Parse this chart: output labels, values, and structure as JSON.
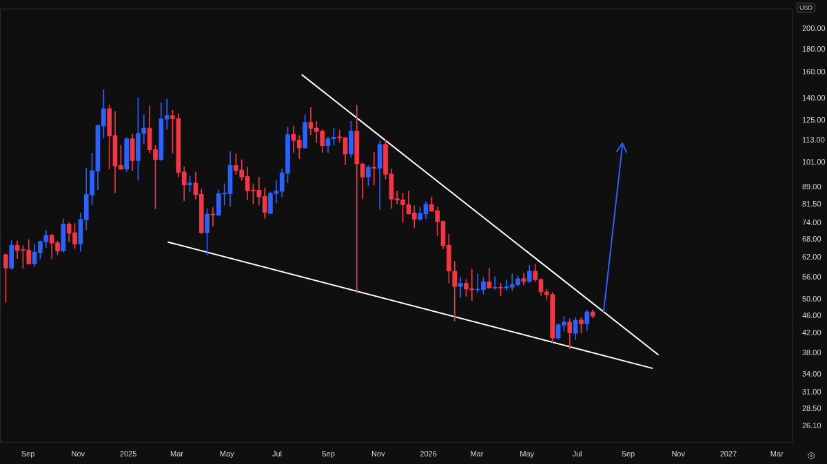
{
  "chart_data": {
    "type": "candlestick",
    "ylabel": "USD",
    "x": [
      "2024-08-05",
      "2024-08-12",
      "2024-08-19",
      "2024-08-26",
      "2024-09-02",
      "2024-09-09",
      "2024-09-16",
      "2024-09-23",
      "2024-09-30",
      "2024-10-07",
      "2024-10-14",
      "2024-10-21",
      "2024-10-28",
      "2024-11-04",
      "2024-11-11",
      "2024-11-18",
      "2024-11-25",
      "2024-12-02",
      "2024-12-09",
      "2024-12-16",
      "2024-12-23",
      "2024-12-30",
      "2025-01-06",
      "2025-01-13",
      "2025-01-20",
      "2025-01-27",
      "2025-02-03",
      "2025-02-10",
      "2025-02-17",
      "2025-02-24",
      "2025-03-03",
      "2025-03-10",
      "2025-03-17",
      "2025-03-24",
      "2025-03-31",
      "2025-04-07",
      "2025-04-14",
      "2025-04-21",
      "2025-04-28",
      "2025-05-05",
      "2025-05-12",
      "2025-05-19",
      "2025-05-26",
      "2025-06-02",
      "2025-06-09",
      "2025-06-16",
      "2025-06-23",
      "2025-06-30",
      "2025-07-07",
      "2025-07-14",
      "2025-07-21",
      "2025-07-28",
      "2025-08-04",
      "2025-08-11",
      "2025-08-18",
      "2025-08-25",
      "2025-09-01",
      "2025-09-08",
      "2025-09-15",
      "2025-09-22",
      "2025-09-29",
      "2025-10-06",
      "2025-10-13",
      "2025-10-20",
      "2025-10-27",
      "2025-11-03",
      "2025-11-10",
      "2025-11-17",
      "2025-11-24",
      "2025-12-01",
      "2025-12-08",
      "2025-12-15",
      "2025-12-22",
      "2025-12-29",
      "2026-01-05",
      "2026-01-12",
      "2026-01-19",
      "2026-01-26",
      "2026-02-02",
      "2026-02-09",
      "2026-02-16",
      "2026-02-23",
      "2026-03-02",
      "2026-03-09",
      "2026-03-16",
      "2026-03-23",
      "2026-03-30",
      "2026-04-06",
      "2026-04-13",
      "2026-04-20",
      "2026-04-27",
      "2026-05-04",
      "2026-05-11",
      "2026-05-18",
      "2026-05-25",
      "2026-06-01",
      "2026-06-08",
      "2026-06-15",
      "2026-06-22",
      "2026-06-29",
      "2026-07-06",
      "2026-07-13",
      "2026-07-20"
    ],
    "ohlc": [
      [
        62.9,
        63.2,
        49.3,
        58.7
      ],
      [
        58.7,
        67.6,
        58.3,
        66.0
      ],
      [
        66.0,
        67.5,
        61.6,
        64.3
      ],
      [
        64.5,
        65.9,
        58.6,
        64.3
      ],
      [
        64.4,
        68.0,
        59.8,
        60.0
      ],
      [
        60.0,
        66.3,
        59.1,
        63.7
      ],
      [
        63.5,
        67.5,
        61.5,
        67.3
      ],
      [
        67.1,
        71.2,
        65.2,
        69.5
      ],
      [
        69.5,
        69.9,
        61.5,
        66.7
      ],
      [
        66.8,
        67.5,
        62.8,
        64.1
      ],
      [
        64.1,
        75.6,
        63.7,
        73.6
      ],
      [
        73.6,
        74.1,
        67.3,
        70.2
      ],
      [
        70.4,
        73.8,
        64.9,
        66.4
      ],
      [
        66.4,
        77.9,
        64.0,
        75.4
      ],
      [
        75.2,
        97.9,
        71.4,
        85.6
      ],
      [
        85.4,
        105.9,
        81.2,
        96.8
      ],
      [
        96.6,
        122.3,
        87.7,
        121.9
      ],
      [
        121.6,
        146.5,
        114.3,
        133.0
      ],
      [
        133.0,
        135.4,
        97.6,
        115.6
      ],
      [
        115.9,
        131.1,
        86.3,
        99.1
      ],
      [
        99.4,
        110.2,
        97.4,
        97.4
      ],
      [
        97.6,
        114.6,
        96.3,
        113.9
      ],
      [
        113.9,
        116.7,
        96.8,
        101.8
      ],
      [
        101.8,
        140.7,
        92.1,
        117.2
      ],
      [
        117.0,
        128.9,
        110.8,
        120.3
      ],
      [
        120.3,
        134.8,
        105.9,
        107.6
      ],
      [
        107.9,
        110.2,
        79.5,
        102.4
      ],
      [
        102.4,
        137.1,
        101.9,
        126.2
      ],
      [
        126.0,
        139.6,
        119.6,
        128.4
      ],
      [
        128.4,
        131.8,
        105.9,
        126.3
      ],
      [
        126.4,
        129.9,
        93.7,
        95.9
      ],
      [
        96.1,
        98.7,
        82.9,
        89.9
      ],
      [
        89.9,
        94.0,
        86.7,
        90.8
      ],
      [
        90.8,
        95.9,
        83.6,
        85.6
      ],
      [
        85.7,
        88.0,
        70.0,
        70.4
      ],
      [
        70.4,
        79.5,
        62.7,
        77.4
      ],
      [
        77.4,
        80.1,
        72.8,
        77.1
      ],
      [
        77.0,
        87.8,
        76.8,
        86.0
      ],
      [
        85.8,
        90.5,
        81.1,
        86.2
      ],
      [
        86.0,
        106.7,
        80.6,
        99.4
      ],
      [
        99.4,
        105.4,
        95.0,
        96.8
      ],
      [
        97.0,
        102.4,
        92.0,
        93.7
      ],
      [
        93.9,
        98.5,
        83.3,
        87.3
      ],
      [
        87.5,
        90.5,
        81.5,
        87.3
      ],
      [
        87.5,
        93.6,
        81.1,
        84.6
      ],
      [
        84.8,
        88.5,
        75.8,
        78.0
      ],
      [
        77.7,
        86.7,
        77.5,
        86.2
      ],
      [
        86.0,
        91.9,
        81.9,
        87.1
      ],
      [
        87.0,
        97.7,
        84.6,
        95.7
      ],
      [
        95.5,
        121.0,
        90.9,
        116.4
      ],
      [
        116.7,
        121.6,
        106.2,
        112.9
      ],
      [
        113.2,
        115.9,
        102.9,
        108.7
      ],
      [
        108.7,
        128.8,
        108.4,
        124.0
      ],
      [
        124.0,
        133.9,
        116.3,
        120.2
      ],
      [
        120.3,
        124.5,
        111.8,
        118.3
      ],
      [
        118.5,
        119.5,
        106.2,
        109.9
      ],
      [
        109.9,
        115.0,
        106.0,
        113.9
      ],
      [
        113.9,
        120.3,
        110.2,
        114.7
      ],
      [
        115.0,
        119.1,
        111.8,
        114.4
      ],
      [
        114.6,
        114.6,
        99.8,
        105.3
      ],
      [
        105.3,
        124.5,
        103.5,
        118.5
      ],
      [
        118.5,
        135.5,
        51.7,
        100.2
      ],
      [
        100.2,
        100.8,
        83.7,
        93.6
      ],
      [
        93.6,
        99.3,
        89.6,
        98.5
      ],
      [
        98.5,
        106.3,
        89.9,
        97.9
      ],
      [
        97.9,
        112.8,
        79.2,
        110.7
      ],
      [
        110.7,
        113.2,
        92.7,
        95.0
      ],
      [
        95.2,
        97.6,
        79.7,
        83.6
      ],
      [
        83.8,
        87.2,
        81.5,
        83.2
      ],
      [
        83.3,
        86.3,
        74.3,
        81.2
      ],
      [
        81.3,
        87.2,
        77.5,
        77.5
      ],
      [
        77.9,
        80.9,
        72.2,
        75.4
      ],
      [
        75.4,
        80.1,
        74.9,
        77.7
      ],
      [
        77.5,
        82.5,
        75.6,
        81.4
      ],
      [
        81.4,
        84.5,
        78.6,
        78.6
      ],
      [
        78.8,
        80.4,
        69.2,
        74.5
      ],
      [
        74.6,
        74.8,
        64.8,
        65.9
      ],
      [
        66.0,
        69.9,
        54.4,
        57.8
      ],
      [
        57.8,
        60.8,
        44.7,
        53.4
      ],
      [
        53.4,
        56.1,
        50.5,
        54.3
      ],
      [
        54.3,
        55.4,
        50.8,
        52.7
      ],
      [
        52.8,
        58.4,
        49.7,
        52.5
      ],
      [
        52.5,
        57.0,
        51.7,
        52.6
      ],
      [
        52.5,
        56.1,
        51.3,
        54.7
      ],
      [
        54.7,
        58.7,
        53.0,
        53.0
      ],
      [
        53.0,
        56.2,
        52.6,
        53.2
      ],
      [
        53.2,
        54.3,
        50.9,
        53.0
      ],
      [
        53.0,
        55.2,
        52.3,
        53.4
      ],
      [
        53.2,
        57.0,
        52.3,
        53.9
      ],
      [
        53.9,
        56.3,
        53.5,
        55.6
      ],
      [
        55.6,
        57.2,
        53.8,
        54.8
      ],
      [
        54.8,
        59.6,
        54.4,
        57.8
      ],
      [
        57.8,
        59.9,
        54.8,
        55.3
      ],
      [
        55.4,
        55.6,
        51.0,
        52.0
      ],
      [
        52.0,
        52.7,
        49.8,
        51.2
      ],
      [
        51.3,
        51.8,
        40.0,
        41.0
      ],
      [
        41.0,
        44.2,
        40.7,
        43.9
      ],
      [
        43.8,
        45.8,
        42.5,
        44.5
      ],
      [
        44.5,
        45.3,
        38.8,
        42.1
      ],
      [
        42.0,
        45.6,
        40.7,
        45.0
      ],
      [
        45.0,
        45.6,
        42.1,
        44.1
      ],
      [
        44.1,
        47.3,
        42.5,
        46.9
      ],
      [
        46.9,
        47.4,
        45.5,
        45.9
      ]
    ],
    "colors": [
      "#f23645",
      "#2962ff",
      "#f23645",
      "#f23645",
      "#f23645",
      "#2962ff",
      "#2962ff",
      "#2962ff",
      "#f23645",
      "#f23645",
      "#2962ff",
      "#f23645",
      "#f23645",
      "#2962ff",
      "#2962ff",
      "#2962ff",
      "#2962ff",
      "#2962ff",
      "#f23645",
      "#f23645",
      "#f23645",
      "#2962ff",
      "#f23645",
      "#2962ff",
      "#2962ff",
      "#f23645",
      "#f23645",
      "#2962ff",
      "#2962ff",
      "#f23645",
      "#f23645",
      "#f23645",
      "#2962ff",
      "#f23645",
      "#f23645",
      "#2962ff",
      "#f23645",
      "#2962ff",
      "#2962ff",
      "#2962ff",
      "#f23645",
      "#f23645",
      "#f23645",
      "#f23645",
      "#f23645",
      "#f23645",
      "#2962ff",
      "#2962ff",
      "#2962ff",
      "#2962ff",
      "#f23645",
      "#f23645",
      "#2962ff",
      "#f23645",
      "#f23645",
      "#f23645",
      "#2962ff",
      "#2962ff",
      "#f23645",
      "#f23645",
      "#2962ff",
      "#f23645",
      "#f23645",
      "#2962ff",
      "#f23645",
      "#2962ff",
      "#f23645",
      "#f23645",
      "#f23645",
      "#f23645",
      "#f23645",
      "#f23645",
      "#2962ff",
      "#2962ff",
      "#f23645",
      "#f23645",
      "#f23645",
      "#f23645",
      "#f23645",
      "#2962ff",
      "#f23645",
      "#f23645",
      "#2962ff",
      "#2962ff",
      "#f23645",
      "#2962ff",
      "#f23645",
      "#2962ff",
      "#2962ff",
      "#2962ff",
      "#f23645",
      "#2962ff",
      "#f23645",
      "#f23645",
      "#f23645",
      "#f23645",
      "#2962ff",
      "#2962ff",
      "#f23645",
      "#2962ff",
      "#f23645",
      "#2962ff",
      "#f23645"
    ],
    "series": [
      {
        "type": "line",
        "color": "#ffffff",
        "x": [
          "2025-07-31",
          "2026-10-08"
        ],
        "values": [
          158.3,
          37.6
        ]
      },
      {
        "type": "line",
        "color": "#ffffff",
        "x": [
          "2025-02-18",
          "2026-10-01"
        ],
        "values": [
          67.1,
          35.1
        ]
      }
    ],
    "xlim": [
      "2024-07-29",
      "2027-03-20"
    ],
    "xticks": [
      {
        "value": "2024-09-01",
        "label": "Sep"
      },
      {
        "value": "2024-11-01",
        "label": "Nov"
      },
      {
        "value": "2025-01-01",
        "label": "2025"
      },
      {
        "value": "2025-03-01",
        "label": "Mar"
      },
      {
        "value": "2025-05-01",
        "label": "May"
      },
      {
        "value": "2025-07-01",
        "label": "Jul"
      },
      {
        "value": "2025-09-01",
        "label": "Sep"
      },
      {
        "value": "2025-11-01",
        "label": "Nov"
      },
      {
        "value": "2026-01-01",
        "label": "2026"
      },
      {
        "value": "2026-03-01",
        "label": "Mar"
      },
      {
        "value": "2026-05-01",
        "label": "May"
      },
      {
        "value": "2026-07-01",
        "label": "Jul"
      },
      {
        "value": "2026-09-01",
        "label": "Sep"
      },
      {
        "value": "2026-11-01",
        "label": "Nov"
      },
      {
        "value": "2027-01-01",
        "label": "2027"
      },
      {
        "value": "2027-03-01",
        "label": "Mar"
      }
    ],
    "ylim": [
      24,
      222
    ],
    "yticks": [
      {
        "value": 26.1,
        "label": "26.10"
      },
      {
        "value": 28.5,
        "label": "28.50"
      },
      {
        "value": 31,
        "label": "31.00"
      },
      {
        "value": 34,
        "label": "34.00"
      },
      {
        "value": 38,
        "label": "38.00"
      },
      {
        "value": 42,
        "label": "42.00"
      },
      {
        "value": 46,
        "label": "46.00"
      },
      {
        "value": 50,
        "label": "50.00"
      },
      {
        "value": 56,
        "label": "56.00"
      },
      {
        "value": 62,
        "label": "62.00"
      },
      {
        "value": 68,
        "label": "68.00"
      },
      {
        "value": 74,
        "label": "74.00"
      },
      {
        "value": 81.5,
        "label": "81.50"
      },
      {
        "value": 89,
        "label": "89.00"
      },
      {
        "value": 101,
        "label": "101.00"
      },
      {
        "value": 113,
        "label": "113.00"
      },
      {
        "value": 125,
        "label": "125.00"
      },
      {
        "value": 140,
        "label": "140.00"
      },
      {
        "value": 160,
        "label": "160.00"
      },
      {
        "value": 180,
        "label": "180.00"
      },
      {
        "value": 200,
        "label": "200.00"
      }
    ],
    "log": "y",
    "grid": false,
    "legend": false
  }
}
